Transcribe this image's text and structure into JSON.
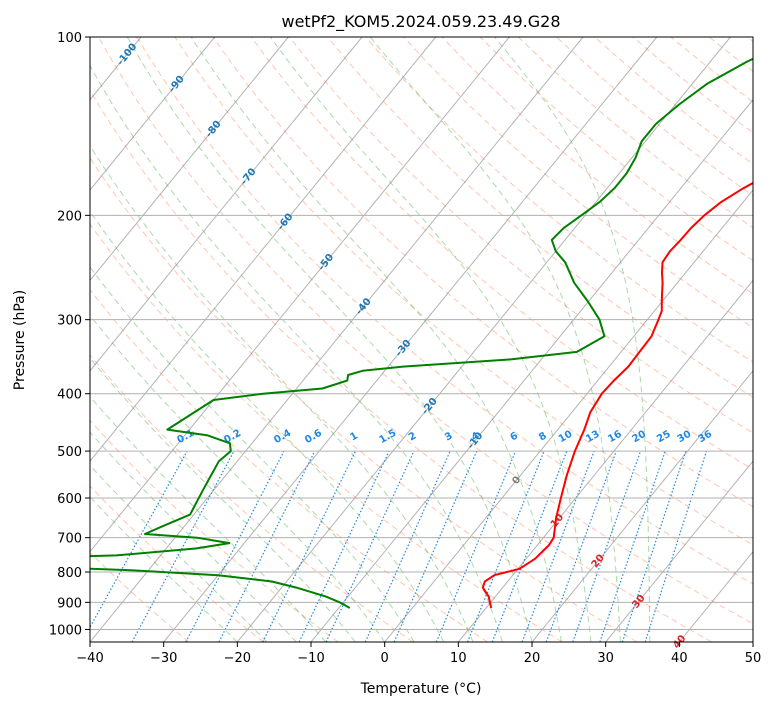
{
  "chart_data": {
    "type": "line",
    "title": "wetPf2_KOM5.2024.059.23.49.G28",
    "xlabel": "Temperature (°C)",
    "ylabel": "Pressure (hPa)",
    "xlim": [
      -40,
      50
    ],
    "ylim": [
      1050,
      100
    ],
    "y_scale": "log",
    "grid": true,
    "x_ticks": [
      -40,
      -30,
      -20,
      -10,
      0,
      10,
      20,
      30,
      40,
      50
    ],
    "x_tick_labels": [
      "−40",
      "−30",
      "−20",
      "−10",
      "0",
      "10",
      "20",
      "30",
      "40",
      "50"
    ],
    "y_ticks": [
      100,
      200,
      300,
      400,
      500,
      600,
      700,
      800,
      900,
      1000
    ],
    "y_tick_labels": [
      "100",
      "200",
      "300",
      "400",
      "500",
      "600",
      "700",
      "800",
      "900",
      "1000"
    ],
    "series": [
      {
        "color": "#ff0000",
        "points": [
          [
            13.5,
            100
          ],
          [
            12.0,
            110
          ],
          [
            10.5,
            120
          ],
          [
            9.5,
            130
          ],
          [
            8.0,
            140
          ],
          [
            5.5,
            150
          ],
          [
            3.0,
            160
          ],
          [
            0.5,
            170
          ],
          [
            -1.5,
            180
          ],
          [
            -3.0,
            190
          ],
          [
            -3.8,
            200
          ],
          [
            -4.2,
            210
          ],
          [
            -4.3,
            220
          ],
          [
            -4.5,
            230
          ],
          [
            -4.3,
            240
          ],
          [
            -3.2,
            250
          ],
          [
            -2.0,
            260
          ],
          [
            -1.0,
            270
          ],
          [
            0.0,
            280
          ],
          [
            1.0,
            290
          ],
          [
            1.5,
            300
          ],
          [
            2.4,
            320
          ],
          [
            2.5,
            340
          ],
          [
            2.6,
            360
          ],
          [
            2.2,
            380
          ],
          [
            2.0,
            400
          ],
          [
            2.5,
            430
          ],
          [
            3.6,
            460
          ],
          [
            4.7,
            500
          ],
          [
            6.3,
            550
          ],
          [
            8.0,
            600
          ],
          [
            9.6,
            650
          ],
          [
            11.4,
            700
          ],
          [
            11.6,
            720
          ],
          [
            11.2,
            760
          ],
          [
            10.2,
            790
          ],
          [
            7.5,
            810
          ],
          [
            6.9,
            830
          ],
          [
            7.3,
            850
          ],
          [
            9.1,
            880
          ],
          [
            10.7,
            920
          ]
        ]
      },
      {
        "color": "#008000",
        "points": [
          [
            -10.5,
            100
          ],
          [
            -15.0,
            110
          ],
          [
            -18.0,
            120
          ],
          [
            -19.5,
            130
          ],
          [
            -20.5,
            140
          ],
          [
            -20.5,
            150
          ],
          [
            -19.5,
            160
          ],
          [
            -19.0,
            170
          ],
          [
            -19.0,
            180
          ],
          [
            -19.5,
            190
          ],
          [
            -20.5,
            200
          ],
          [
            -21.5,
            210
          ],
          [
            -21.8,
            220
          ],
          [
            -20.0,
            230
          ],
          [
            -17.5,
            240
          ],
          [
            -14.0,
            260
          ],
          [
            -10.0,
            280
          ],
          [
            -6.5,
            300
          ],
          [
            -4.0,
            320
          ],
          [
            -6.0,
            340
          ],
          [
            -14.0,
            350
          ],
          [
            -28.0,
            360
          ],
          [
            -33.0,
            366
          ],
          [
            -34.5,
            372
          ],
          [
            -34.0,
            380
          ],
          [
            -36.5,
            392
          ],
          [
            -44.0,
            400
          ],
          [
            -50.0,
            410
          ],
          [
            -53.0,
            460
          ],
          [
            -47.0,
            470
          ],
          [
            -43.0,
            485
          ],
          [
            -42.0,
            500
          ],
          [
            -42.5,
            520
          ],
          [
            -42.0,
            550
          ],
          [
            -41.5,
            580
          ],
          [
            -41.0,
            610
          ],
          [
            -40.5,
            640
          ],
          [
            -43.0,
            670
          ],
          [
            -44.5,
            690
          ],
          [
            -37.0,
            700
          ],
          [
            -32.0,
            715
          ],
          [
            -36.0,
            730
          ],
          [
            -46.0,
            750
          ],
          [
            -62.0,
            760
          ],
          [
            -60.0,
            780
          ],
          [
            -42.0,
            795
          ],
          [
            -30.0,
            810
          ],
          [
            -22.0,
            830
          ],
          [
            -18.0,
            850
          ],
          [
            -13.0,
            880
          ],
          [
            -10.5,
            900
          ],
          [
            -8.5,
            920
          ]
        ]
      }
    ],
    "isotherm_labels": [
      "-100",
      "-90",
      "-80",
      "-70",
      "-60",
      "-50",
      "-40",
      "-30",
      "-20",
      "-10",
      "0",
      "10",
      "20",
      "30",
      "40"
    ],
    "mixing_ratio_labels": [
      "0.1",
      "0.2",
      "0.4",
      "0.6",
      "1",
      "1.5",
      "2",
      "3",
      "4",
      "6",
      "8",
      "10",
      "13",
      "16",
      "20",
      "25",
      "30",
      "36"
    ],
    "colors": {
      "temperature": "#ff0000",
      "dewpoint": "#008000",
      "isotherm_label_cold": "#1f77b4",
      "isotherm_label_zero": "#7f7f7f",
      "isotherm_label_warm": "#d62728",
      "mixing_ratio": "#1e88e5",
      "dry_adiabat": "#ff7f50",
      "moist_adiabat": "#2ca02c",
      "skewed_isotherm": "#808080"
    }
  }
}
